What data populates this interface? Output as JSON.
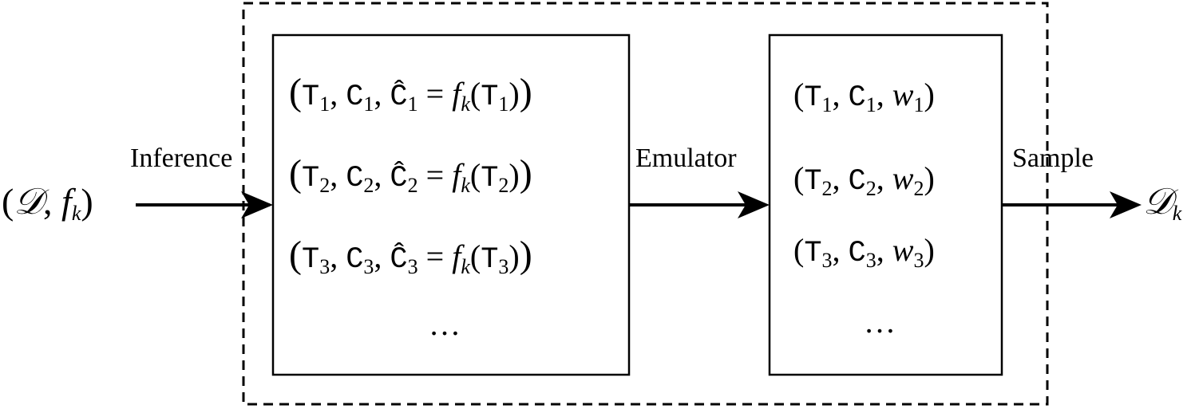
{
  "input_label": "(𝒟, f_k)",
  "output_label": "𝒟_k",
  "edges": {
    "inference": "Inference",
    "emulator": "Emulator",
    "sample": "Sample"
  },
  "inference_box": {
    "rows": [
      {
        "index": "1"
      },
      {
        "index": "2"
      },
      {
        "index": "3"
      }
    ],
    "ellipsis": "…"
  },
  "emulator_box": {
    "rows": [
      {
        "index": "1"
      },
      {
        "index": "2"
      },
      {
        "index": "3"
      }
    ],
    "ellipsis": "…"
  }
}
